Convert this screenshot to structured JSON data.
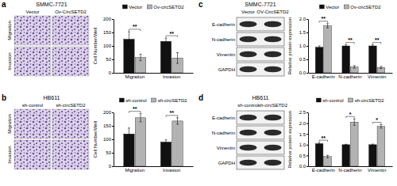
{
  "figure": {
    "panels": [
      {
        "letter": "a",
        "cell_line": "SMMC-7721",
        "columns": [
          "Vector",
          "Ov-CircSETD2"
        ],
        "image_rows": [
          "Migration",
          "Invasion"
        ]
      },
      {
        "letter": "b",
        "cell_line": "HB611",
        "columns": [
          "sh-control",
          "sh-circSETD2"
        ],
        "image_rows": [
          "Migration",
          "Invasion"
        ]
      },
      {
        "letter": "c",
        "cell_line": "SMMC-7721",
        "columns": [
          "Vector",
          "OV-CircSETD2"
        ],
        "blot_rows": [
          "E-cadherin",
          "N-cadherin",
          "Vimentin",
          "GAPDH"
        ]
      },
      {
        "letter": "d",
        "cell_line": "HB611",
        "columns": [
          "sh-control",
          "sh-circSETD2"
        ],
        "blot_rows": [
          "E-cadherin",
          "N-cadherin",
          "Vimentin",
          "GAPDH"
        ]
      }
    ]
  },
  "chart_data": [
    {
      "type": "bar",
      "ylabel": "Cell Number/Well",
      "categories": [
        "Migration",
        "Invasion"
      ],
      "series": [
        {
          "name": "Vector",
          "color": "#111111",
          "values": [
            125,
            117
          ],
          "errors": [
            28,
            12
          ]
        },
        {
          "name": "Ov-circSETD2",
          "color": "#b3b3b3",
          "values": [
            57,
            55
          ],
          "errors": [
            12,
            20
          ]
        }
      ],
      "ylim": [
        0,
        200
      ],
      "yticks": [
        0,
        50,
        100,
        150,
        200
      ],
      "legend": "top",
      "annotations": [
        {
          "text": "**",
          "category": "Migration"
        },
        {
          "text": "**",
          "category": "Invasion"
        }
      ]
    },
    {
      "type": "bar",
      "ylabel": "Cell Number/Well",
      "categories": [
        "Migration",
        "Invasion"
      ],
      "series": [
        {
          "name": "sh-control",
          "color": "#111111",
          "values": [
            120,
            90
          ],
          "errors": [
            22,
            8
          ]
        },
        {
          "name": "sh-circSETD2",
          "color": "#b3b3b3",
          "values": [
            180,
            168
          ],
          "errors": [
            15,
            12
          ]
        }
      ],
      "ylim": [
        0,
        200
      ],
      "yticks": [
        0,
        50,
        100,
        150,
        200
      ],
      "legend": "top",
      "annotations": [
        {
          "text": "**",
          "category": "Migration"
        },
        {
          "text": "**",
          "category": "Invasion"
        }
      ]
    },
    {
      "type": "bar",
      "ylabel": "Relative protein expression",
      "categories": [
        "E-cadherin",
        "N-cadherin",
        "Vimentin"
      ],
      "series": [
        {
          "name": "Vector",
          "color": "#111111",
          "values": [
            0.95,
            1.0,
            1.0
          ],
          "errors": [
            0.05,
            0.04,
            0.04
          ]
        },
        {
          "name": "Ov-circSETD2",
          "color": "#b3b3b3",
          "values": [
            1.75,
            0.22,
            0.2
          ],
          "errors": [
            0.08,
            0.05,
            0.04
          ]
        }
      ],
      "ylim": [
        0,
        2
      ],
      "yticks": [
        {
          "value": 0,
          "label": "0.0"
        },
        0.5,
        {
          "value": 1,
          "label": "1.0"
        },
        1.5,
        {
          "value": 2,
          "label": "2.0"
        }
      ],
      "legend": "top",
      "annotations": [
        {
          "text": "**",
          "category": "E-cadherin"
        },
        {
          "text": "**",
          "category": "N-cadherin"
        },
        {
          "text": "**",
          "category": "Vimentin"
        }
      ]
    },
    {
      "type": "bar",
      "ylabel": "Relative protein expression",
      "categories": [
        "E-cadherin",
        "N-cadherin",
        "Vimentin"
      ],
      "series": [
        {
          "name": "sh-control",
          "color": "#111111",
          "values": [
            1.05,
            1.0,
            1.0
          ],
          "errors": [
            0.05,
            0.02,
            0.03
          ]
        },
        {
          "name": "sh-circSETD2",
          "color": "#b3b3b3",
          "values": [
            0.45,
            2.05,
            1.85
          ],
          "errors": [
            0.06,
            0.15,
            0.08
          ]
        }
      ],
      "ylim": [
        0,
        2.5
      ],
      "yticks": [
        {
          "value": 0,
          "label": "0.0"
        },
        0.5,
        {
          "value": 1,
          "label": "1.0"
        },
        1.5,
        {
          "value": 2,
          "label": "2.0"
        },
        2.5
      ],
      "legend": "top",
      "annotations": [
        {
          "text": "**",
          "category": "E-cadherin"
        },
        {
          "text": "*",
          "category": "N-cadherin"
        },
        {
          "text": "*",
          "category": "Vimentin"
        }
      ]
    }
  ]
}
